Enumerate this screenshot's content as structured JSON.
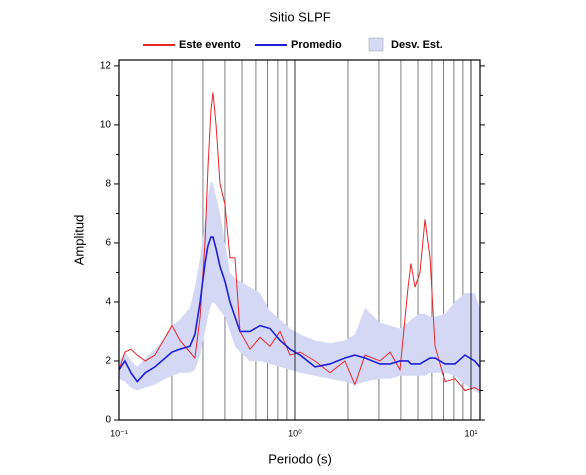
{
  "chart_data": {
    "type": "line",
    "title": "Sitio SLPF",
    "x_label": "Periodo (s)",
    "y_label": "Amplitud",
    "xscale": "log",
    "xlim": [
      0.1,
      11.25
    ],
    "ylim": [
      0,
      12.2
    ],
    "xticks": [
      {
        "value": 0.1,
        "label": "10⁻¹"
      },
      {
        "value": 1,
        "label": "10⁰"
      },
      {
        "value": 10,
        "label": "10¹"
      }
    ],
    "yticks": [
      0,
      2,
      4,
      6,
      8,
      10,
      12
    ],
    "xgrid": true,
    "legend": "top",
    "x": [
      0.1,
      0.108,
      0.117,
      0.127,
      0.141,
      0.16,
      0.183,
      0.2,
      0.222,
      0.253,
      0.27,
      0.289,
      0.308,
      0.32,
      0.333,
      0.342,
      0.356,
      0.375,
      0.4,
      0.427,
      0.456,
      0.487,
      0.555,
      0.633,
      0.721,
      0.822,
      0.937,
      1.07,
      1.3,
      1.58,
      1.92,
      2.19,
      2.5,
      3.04,
      3.47,
      3.95,
      4.39,
      4.56,
      4.81,
      5.13,
      5.48,
      5.85,
      6.25,
      7.12,
      8.11,
      9.24,
      10.5,
      11.2
    ],
    "series": [
      {
        "name": "Este evento",
        "color": "#e8262b",
        "values": [
          1.7,
          2.3,
          2.4,
          2.2,
          2.0,
          2.2,
          2.8,
          3.2,
          2.7,
          2.3,
          2.1,
          3.5,
          6.0,
          8.5,
          10.5,
          11.1,
          10.0,
          8.0,
          7.3,
          5.5,
          5.5,
          3.0,
          2.4,
          2.8,
          2.5,
          3.0,
          2.2,
          2.3,
          2.0,
          1.6,
          2.0,
          1.2,
          2.2,
          2.0,
          2.3,
          1.7,
          4.5,
          5.3,
          4.5,
          5.0,
          6.8,
          5.5,
          2.5,
          1.3,
          1.4,
          1.0,
          1.1,
          1.0
        ]
      },
      {
        "name": "Promedio",
        "color": "#1f1fd6",
        "values": [
          1.7,
          2.0,
          1.6,
          1.3,
          1.6,
          1.8,
          2.1,
          2.3,
          2.4,
          2.5,
          2.9,
          4.0,
          5.3,
          5.9,
          6.2,
          6.2,
          5.8,
          5.2,
          4.7,
          4.0,
          3.5,
          3.0,
          3.0,
          3.2,
          3.1,
          2.7,
          2.4,
          2.2,
          1.8,
          1.9,
          2.1,
          2.2,
          2.1,
          1.9,
          1.9,
          2.0,
          2.0,
          1.9,
          1.9,
          1.9,
          2.0,
          2.1,
          2.1,
          1.9,
          1.9,
          2.2,
          2.0,
          1.8
        ]
      },
      {
        "name": "Desv. Est.",
        "color": "#d4d8f5",
        "lower": [
          1.4,
          1.3,
          1.1,
          1.0,
          1.1,
          1.2,
          1.4,
          1.5,
          1.6,
          1.6,
          1.7,
          2.2,
          3.0,
          3.5,
          3.9,
          4.0,
          3.9,
          3.7,
          3.5,
          3.0,
          2.5,
          2.3,
          2.0,
          2.0,
          1.9,
          1.8,
          1.7,
          1.6,
          1.5,
          1.4,
          1.3,
          1.2,
          1.3,
          1.4,
          1.4,
          1.5,
          1.5,
          1.5,
          1.5,
          1.5,
          1.5,
          1.6,
          1.6,
          1.6,
          1.5,
          1.2,
          1.0,
          0.9
        ],
        "upper": [
          2.0,
          2.3,
          2.0,
          1.8,
          2.1,
          2.4,
          2.8,
          3.2,
          3.4,
          3.8,
          4.5,
          5.5,
          6.8,
          7.6,
          8.1,
          8.0,
          7.6,
          7.0,
          6.0,
          5.0,
          4.8,
          4.7,
          4.5,
          4.3,
          3.7,
          3.4,
          3.1,
          2.9,
          2.7,
          2.6,
          2.7,
          2.9,
          3.8,
          3.3,
          3.2,
          3.1,
          3.3,
          3.4,
          3.5,
          3.6,
          3.6,
          3.5,
          3.5,
          3.6,
          4.0,
          4.3,
          4.3,
          3.8
        ]
      }
    ]
  }
}
